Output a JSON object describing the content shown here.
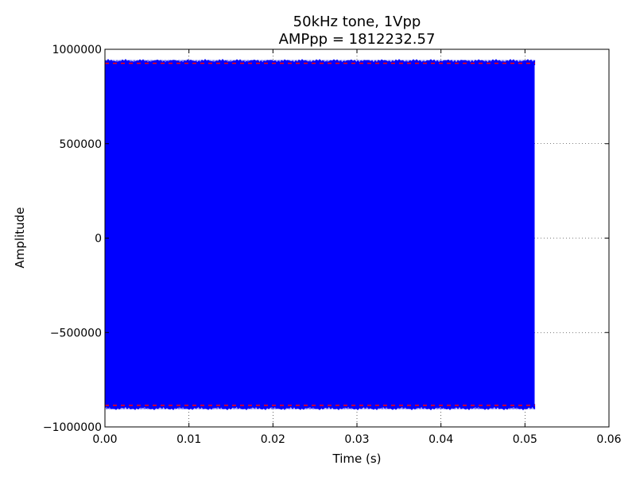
{
  "chart_data": {
    "type": "line",
    "title_line1": "50kHz tone, 1Vpp",
    "title_line2": "AMPpp = 1812232.57",
    "xlabel": "Time (s)",
    "ylabel": "Amplitude",
    "xlim": [
      0.0,
      0.06
    ],
    "ylim": [
      -1000000,
      1000000
    ],
    "x_ticks": [
      {
        "value": 0.0,
        "label": "0.00"
      },
      {
        "value": 0.01,
        "label": "0.01"
      },
      {
        "value": 0.02,
        "label": "0.02"
      },
      {
        "value": 0.03,
        "label": "0.03"
      },
      {
        "value": 0.04,
        "label": "0.04"
      },
      {
        "value": 0.05,
        "label": "0.05"
      },
      {
        "value": 0.06,
        "label": "0.06"
      }
    ],
    "y_ticks": [
      {
        "value": -1000000,
        "label": "−1000000"
      },
      {
        "value": -500000,
        "label": "−500000"
      },
      {
        "value": 0,
        "label": "0"
      },
      {
        "value": 500000,
        "label": "500000"
      },
      {
        "value": 1000000,
        "label": "1000000"
      }
    ],
    "grid": true,
    "series": [
      {
        "color": "#0000ff",
        "tone_frequency_hz": 50000,
        "x_start": 0.0,
        "x_end": 0.0512,
        "max_envelope": 937000,
        "min_envelope": -900000
      }
    ],
    "reference_lines": [
      {
        "value": 926000,
        "color": "#ff0000",
        "style": "dashed"
      },
      {
        "value": -886000,
        "color": "#ff0000",
        "style": "dashed"
      }
    ]
  }
}
